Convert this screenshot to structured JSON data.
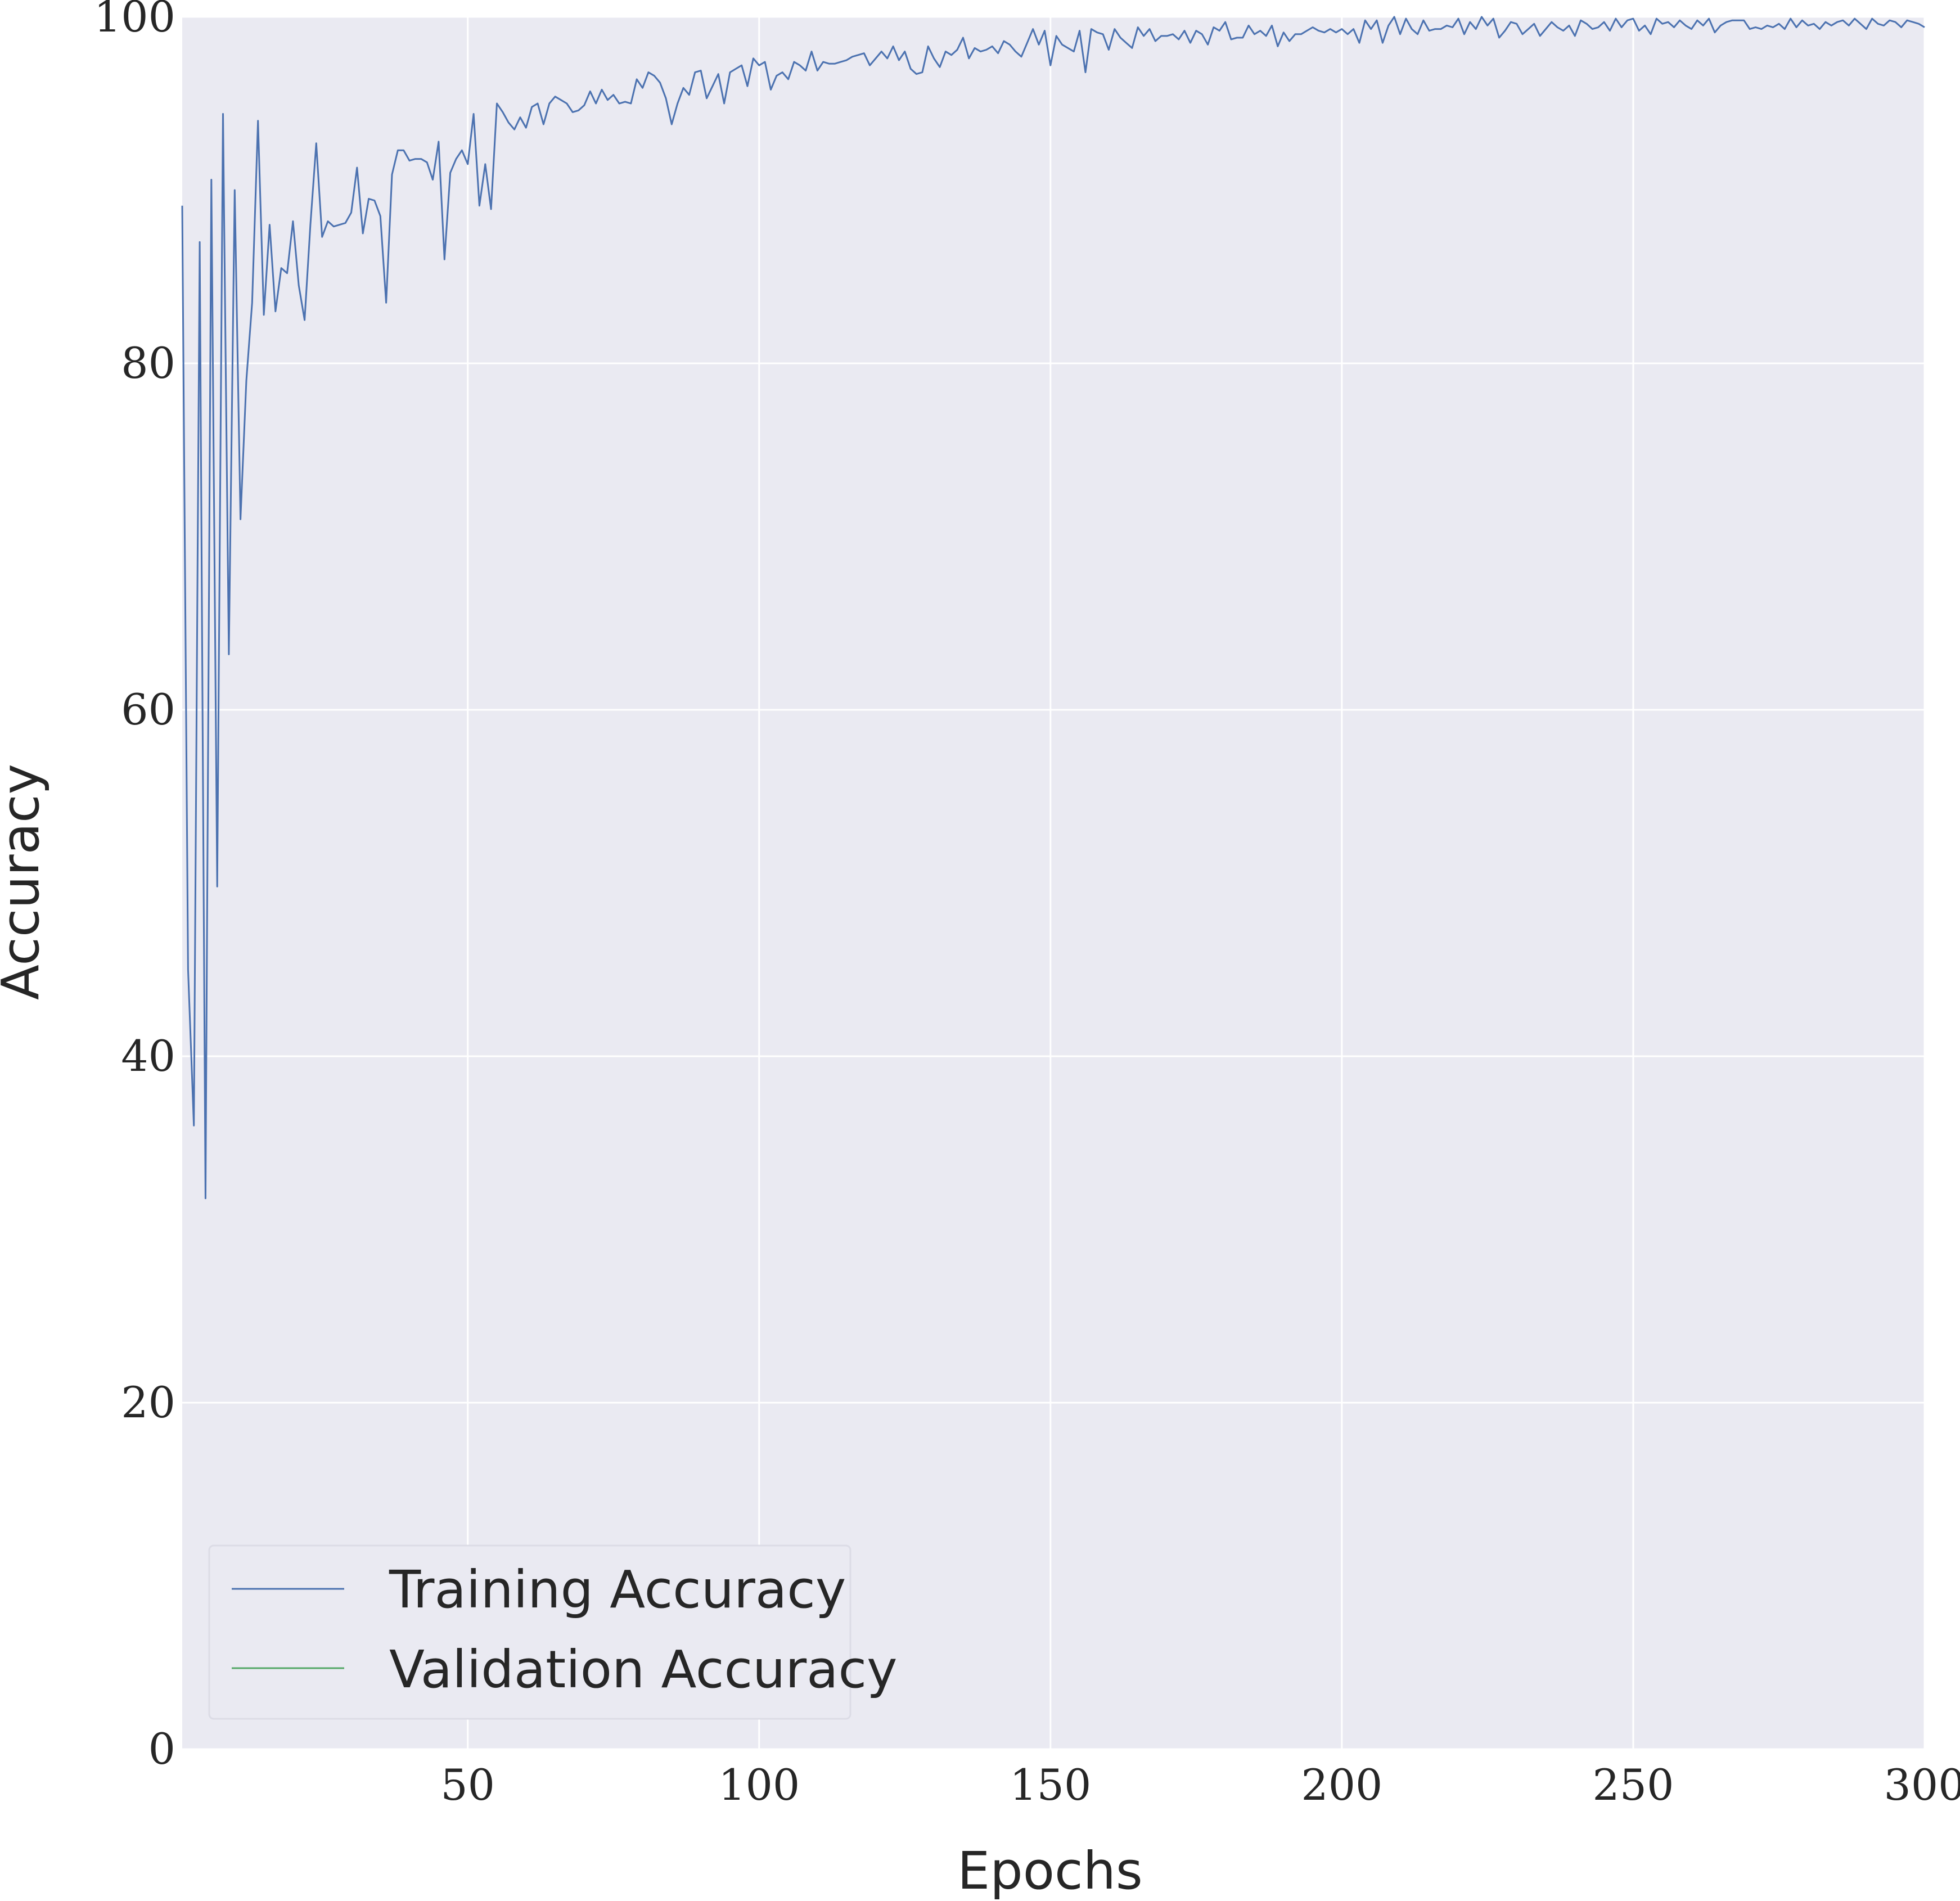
{
  "chart_data": {
    "type": "line",
    "title": "",
    "xlabel": "Epochs",
    "ylabel": "Accuracy",
    "xlim": [
      1,
      300
    ],
    "ylim": [
      0,
      100
    ],
    "x_ticks": [
      50,
      100,
      150,
      200,
      250,
      300
    ],
    "y_ticks": [
      0,
      20,
      40,
      60,
      80,
      100
    ],
    "grid": true,
    "legend_position": "lower-left",
    "series": [
      {
        "name": "Training Accuracy",
        "color": "#4c72b0",
        "points": [
          [
            1,
            89.1
          ],
          [
            2,
            45.0
          ],
          [
            3,
            36.0
          ],
          [
            4,
            87.0
          ],
          [
            5,
            31.8
          ],
          [
            6,
            90.6
          ],
          [
            7,
            49.8
          ],
          [
            8,
            94.4
          ],
          [
            9,
            63.2
          ],
          [
            10,
            90.0
          ],
          [
            11,
            71.0
          ],
          [
            12,
            79.0
          ],
          [
            13,
            83.5
          ],
          [
            14,
            94.0
          ],
          [
            15,
            82.8
          ],
          [
            16,
            88.0
          ],
          [
            17,
            83.0
          ],
          [
            18,
            85.5
          ],
          [
            19,
            85.2
          ],
          [
            20,
            88.2
          ],
          [
            21,
            84.5
          ],
          [
            22,
            82.5
          ],
          [
            23,
            88.0
          ],
          [
            24,
            92.7
          ],
          [
            25,
            87.3
          ],
          [
            26,
            88.2
          ],
          [
            27,
            87.9
          ],
          [
            28,
            88.0
          ],
          [
            29,
            88.1
          ],
          [
            30,
            88.7
          ],
          [
            31,
            91.3
          ],
          [
            32,
            87.5
          ],
          [
            33,
            89.5
          ],
          [
            34,
            89.4
          ],
          [
            35,
            88.5
          ],
          [
            36,
            83.5
          ],
          [
            37,
            90.9
          ],
          [
            38,
            92.3
          ],
          [
            39,
            92.3
          ],
          [
            40,
            91.7
          ],
          [
            41,
            91.8
          ],
          [
            42,
            91.8
          ],
          [
            43,
            91.6
          ],
          [
            44,
            90.6
          ],
          [
            45,
            92.8
          ],
          [
            46,
            86.0
          ],
          [
            47,
            91.0
          ],
          [
            48,
            91.8
          ],
          [
            49,
            92.3
          ],
          [
            50,
            91.5
          ],
          [
            51,
            94.4
          ],
          [
            52,
            89.1
          ],
          [
            53,
            91.5
          ],
          [
            54,
            88.9
          ],
          [
            55,
            95.0
          ],
          [
            56,
            94.5
          ],
          [
            57,
            93.9
          ],
          [
            58,
            93.5
          ],
          [
            59,
            94.2
          ],
          [
            60,
            93.6
          ],
          [
            61,
            94.8
          ],
          [
            62,
            95.0
          ],
          [
            63,
            93.8
          ],
          [
            64,
            95.0
          ],
          [
            65,
            95.4
          ],
          [
            66,
            95.2
          ],
          [
            67,
            95.0
          ],
          [
            68,
            94.5
          ],
          [
            69,
            94.6
          ],
          [
            70,
            94.9
          ],
          [
            71,
            95.7
          ],
          [
            72,
            95.0
          ],
          [
            73,
            95.8
          ],
          [
            74,
            95.2
          ],
          [
            75,
            95.5
          ],
          [
            76,
            95.0
          ],
          [
            77,
            95.1
          ],
          [
            78,
            95.0
          ],
          [
            79,
            96.4
          ],
          [
            80,
            95.9
          ],
          [
            81,
            96.8
          ],
          [
            82,
            96.6
          ],
          [
            83,
            96.2
          ],
          [
            84,
            95.3
          ],
          [
            85,
            93.8
          ],
          [
            86,
            95.0
          ],
          [
            87,
            95.9
          ],
          [
            88,
            95.5
          ],
          [
            89,
            96.8
          ],
          [
            90,
            96.9
          ],
          [
            91,
            95.3
          ],
          [
            92,
            96.0
          ],
          [
            93,
            96.7
          ],
          [
            94,
            95.0
          ],
          [
            95,
            96.8
          ],
          [
            96,
            97.0
          ],
          [
            97,
            97.2
          ],
          [
            98,
            96.0
          ],
          [
            99,
            97.6
          ],
          [
            100,
            97.2
          ],
          [
            101,
            97.4
          ],
          [
            102,
            95.8
          ],
          [
            103,
            96.6
          ],
          [
            104,
            96.8
          ],
          [
            105,
            96.4
          ],
          [
            106,
            97.4
          ],
          [
            107,
            97.2
          ],
          [
            108,
            96.9
          ],
          [
            109,
            98.0
          ],
          [
            110,
            96.9
          ],
          [
            111,
            97.4
          ],
          [
            112,
            97.3
          ],
          [
            113,
            97.3
          ],
          [
            114,
            97.4
          ],
          [
            115,
            97.5
          ],
          [
            116,
            97.7
          ],
          [
            117,
            97.8
          ],
          [
            118,
            97.9
          ],
          [
            119,
            97.2
          ],
          [
            120,
            97.6
          ],
          [
            121,
            98.0
          ],
          [
            122,
            97.6
          ],
          [
            123,
            98.3
          ],
          [
            124,
            97.5
          ],
          [
            125,
            98.0
          ],
          [
            126,
            97.0
          ],
          [
            127,
            96.7
          ],
          [
            128,
            96.8
          ],
          [
            129,
            98.3
          ],
          [
            130,
            97.6
          ],
          [
            131,
            97.1
          ],
          [
            132,
            98.0
          ],
          [
            133,
            97.8
          ],
          [
            134,
            98.1
          ],
          [
            135,
            98.8
          ],
          [
            136,
            97.6
          ],
          [
            137,
            98.2
          ],
          [
            138,
            98.0
          ],
          [
            139,
            98.1
          ],
          [
            140,
            98.3
          ],
          [
            141,
            97.9
          ],
          [
            142,
            98.6
          ],
          [
            143,
            98.4
          ],
          [
            144,
            98.0
          ],
          [
            145,
            97.7
          ],
          [
            146,
            98.5
          ],
          [
            147,
            99.3
          ],
          [
            148,
            98.4
          ],
          [
            149,
            99.2
          ],
          [
            150,
            97.2
          ],
          [
            151,
            98.9
          ],
          [
            152,
            98.4
          ],
          [
            153,
            98.2
          ],
          [
            154,
            98.0
          ],
          [
            155,
            99.2
          ],
          [
            156,
            96.8
          ],
          [
            157,
            99.3
          ],
          [
            158,
            99.1
          ],
          [
            159,
            99.0
          ],
          [
            160,
            98.1
          ],
          [
            161,
            99.3
          ],
          [
            162,
            98.8
          ],
          [
            163,
            98.5
          ],
          [
            164,
            98.2
          ],
          [
            165,
            99.4
          ],
          [
            166,
            98.9
          ],
          [
            167,
            99.3
          ],
          [
            168,
            98.6
          ],
          [
            169,
            98.9
          ],
          [
            170,
            98.9
          ],
          [
            171,
            99.0
          ],
          [
            172,
            98.7
          ],
          [
            173,
            99.2
          ],
          [
            174,
            98.5
          ],
          [
            175,
            99.2
          ],
          [
            176,
            99.0
          ],
          [
            177,
            98.4
          ],
          [
            178,
            99.4
          ],
          [
            179,
            99.2
          ],
          [
            180,
            99.7
          ],
          [
            181,
            98.7
          ],
          [
            182,
            98.8
          ],
          [
            183,
            98.8
          ],
          [
            184,
            99.5
          ],
          [
            185,
            99.0
          ],
          [
            186,
            99.2
          ],
          [
            187,
            98.9
          ],
          [
            188,
            99.5
          ],
          [
            189,
            98.3
          ],
          [
            190,
            99.1
          ],
          [
            191,
            98.6
          ],
          [
            192,
            99.0
          ],
          [
            193,
            99.0
          ],
          [
            194,
            99.2
          ],
          [
            195,
            99.4
          ],
          [
            196,
            99.2
          ],
          [
            197,
            99.1
          ],
          [
            198,
            99.3
          ],
          [
            199,
            99.1
          ],
          [
            200,
            99.3
          ],
          [
            201,
            99.0
          ],
          [
            202,
            99.3
          ],
          [
            203,
            98.5
          ],
          [
            204,
            99.8
          ],
          [
            205,
            99.3
          ],
          [
            206,
            99.8
          ],
          [
            207,
            98.5
          ],
          [
            208,
            99.5
          ],
          [
            209,
            100.0
          ],
          [
            210,
            99.0
          ],
          [
            211,
            99.9
          ],
          [
            212,
            99.3
          ],
          [
            213,
            99.0
          ],
          [
            214,
            99.8
          ],
          [
            215,
            99.2
          ],
          [
            216,
            99.3
          ],
          [
            217,
            99.3
          ],
          [
            218,
            99.5
          ],
          [
            219,
            99.4
          ],
          [
            220,
            99.9
          ],
          [
            221,
            99.0
          ],
          [
            222,
            99.7
          ],
          [
            223,
            99.3
          ],
          [
            224,
            100.0
          ],
          [
            225,
            99.5
          ],
          [
            226,
            99.9
          ],
          [
            227,
            98.8
          ],
          [
            228,
            99.2
          ],
          [
            229,
            99.7
          ],
          [
            230,
            99.6
          ],
          [
            231,
            99.0
          ],
          [
            232,
            99.3
          ],
          [
            233,
            99.6
          ],
          [
            234,
            98.9
          ],
          [
            235,
            99.3
          ],
          [
            236,
            99.7
          ],
          [
            237,
            99.4
          ],
          [
            238,
            99.2
          ],
          [
            239,
            99.5
          ],
          [
            240,
            98.9
          ],
          [
            241,
            99.8
          ],
          [
            242,
            99.6
          ],
          [
            243,
            99.3
          ],
          [
            244,
            99.4
          ],
          [
            245,
            99.7
          ],
          [
            246,
            99.2
          ],
          [
            247,
            99.9
          ],
          [
            248,
            99.4
          ],
          [
            249,
            99.8
          ],
          [
            250,
            99.9
          ],
          [
            251,
            99.2
          ],
          [
            252,
            99.5
          ],
          [
            253,
            99.0
          ],
          [
            254,
            99.9
          ],
          [
            255,
            99.6
          ],
          [
            256,
            99.7
          ],
          [
            257,
            99.4
          ],
          [
            258,
            99.8
          ],
          [
            259,
            99.5
          ],
          [
            260,
            99.3
          ],
          [
            261,
            99.8
          ],
          [
            262,
            99.5
          ],
          [
            263,
            99.9
          ],
          [
            264,
            99.1
          ],
          [
            265,
            99.5
          ],
          [
            266,
            99.7
          ],
          [
            267,
            99.8
          ],
          [
            268,
            99.8
          ],
          [
            269,
            99.8
          ],
          [
            270,
            99.3
          ],
          [
            271,
            99.4
          ],
          [
            272,
            99.3
          ],
          [
            273,
            99.5
          ],
          [
            274,
            99.4
          ],
          [
            275,
            99.6
          ],
          [
            276,
            99.3
          ],
          [
            277,
            99.9
          ],
          [
            278,
            99.4
          ],
          [
            279,
            99.8
          ],
          [
            280,
            99.5
          ],
          [
            281,
            99.6
          ],
          [
            282,
            99.3
          ],
          [
            283,
            99.7
          ],
          [
            284,
            99.5
          ],
          [
            285,
            99.7
          ],
          [
            286,
            99.8
          ],
          [
            287,
            99.5
          ],
          [
            288,
            99.9
          ],
          [
            289,
            99.6
          ],
          [
            290,
            99.3
          ],
          [
            291,
            99.9
          ],
          [
            292,
            99.6
          ],
          [
            293,
            99.5
          ],
          [
            294,
            99.8
          ],
          [
            295,
            99.7
          ],
          [
            296,
            99.4
          ],
          [
            297,
            99.8
          ],
          [
            298,
            99.7
          ],
          [
            299,
            99.6
          ],
          [
            300,
            99.4
          ]
        ]
      },
      {
        "name": "Validation Accuracy",
        "color": "#55a868",
        "points": []
      }
    ]
  }
}
